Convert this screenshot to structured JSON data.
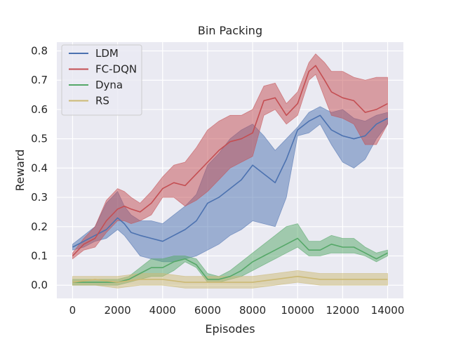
{
  "chart_data": {
    "type": "line",
    "title": "Bin Packing",
    "xlabel": "Episodes",
    "ylabel": "Reward",
    "xlim": [
      -700,
      14700
    ],
    "ylim": [
      -0.045,
      0.83
    ],
    "xticks": [
      0,
      2000,
      4000,
      6000,
      8000,
      10000,
      12000,
      14000
    ],
    "xtick_labels": [
      "0",
      "2000",
      "4000",
      "6000",
      "8000",
      "10000",
      "12000",
      "14000"
    ],
    "yticks": [
      0.0,
      0.1,
      0.2,
      0.3,
      0.4,
      0.5,
      0.6,
      0.7,
      0.8
    ],
    "ytick_labels": [
      "0.0",
      "0.1",
      "0.2",
      "0.3",
      "0.4",
      "0.5",
      "0.6",
      "0.7",
      "0.8"
    ],
    "grid": true,
    "legend_position": "top-left",
    "series": [
      {
        "name": "LDM",
        "color": "#4c72b0",
        "x": [
          0,
          500,
          1000,
          1500,
          2000,
          2300,
          2600,
          3000,
          3500,
          4000,
          4500,
          5000,
          5500,
          6000,
          6500,
          7000,
          7500,
          8000,
          8500,
          9000,
          9500,
          10000,
          10500,
          11000,
          11500,
          12000,
          12500,
          13000,
          13500,
          14000
        ],
        "mean": [
          0.13,
          0.15,
          0.17,
          0.19,
          0.23,
          0.21,
          0.18,
          0.17,
          0.16,
          0.15,
          0.17,
          0.19,
          0.22,
          0.28,
          0.3,
          0.33,
          0.36,
          0.41,
          0.38,
          0.35,
          0.43,
          0.53,
          0.56,
          0.58,
          0.53,
          0.51,
          0.5,
          0.51,
          0.55,
          0.57
        ],
        "lower": [
          0.12,
          0.13,
          0.15,
          0.16,
          0.19,
          0.17,
          0.14,
          0.1,
          0.09,
          0.08,
          0.08,
          0.09,
          0.1,
          0.12,
          0.14,
          0.17,
          0.19,
          0.22,
          0.21,
          0.2,
          0.3,
          0.51,
          0.52,
          0.55,
          0.48,
          0.42,
          0.4,
          0.43,
          0.5,
          0.55
        ],
        "upper": [
          0.14,
          0.17,
          0.2,
          0.28,
          0.32,
          0.27,
          0.24,
          0.22,
          0.22,
          0.21,
          0.24,
          0.27,
          0.31,
          0.41,
          0.45,
          0.5,
          0.53,
          0.55,
          0.51,
          0.46,
          0.5,
          0.54,
          0.59,
          0.61,
          0.59,
          0.6,
          0.57,
          0.56,
          0.58,
          0.59
        ]
      },
      {
        "name": "FC-DQN",
        "color": "#c44e52",
        "x": [
          0,
          500,
          1000,
          1500,
          2000,
          2300,
          2600,
          3000,
          3500,
          4000,
          4500,
          5000,
          5500,
          6000,
          6500,
          7000,
          7500,
          8000,
          8500,
          9000,
          9500,
          10000,
          10500,
          10800,
          11200,
          11500,
          12000,
          12500,
          13000,
          13500,
          14000
        ],
        "mean": [
          0.1,
          0.14,
          0.16,
          0.22,
          0.26,
          0.27,
          0.26,
          0.25,
          0.28,
          0.33,
          0.35,
          0.34,
          0.38,
          0.42,
          0.46,
          0.49,
          0.5,
          0.52,
          0.63,
          0.64,
          0.58,
          0.62,
          0.73,
          0.75,
          0.7,
          0.66,
          0.64,
          0.63,
          0.59,
          0.6,
          0.62
        ],
        "lower": [
          0.09,
          0.12,
          0.13,
          0.18,
          0.22,
          0.22,
          0.21,
          0.22,
          0.24,
          0.3,
          0.3,
          0.27,
          0.29,
          0.32,
          0.36,
          0.4,
          0.42,
          0.44,
          0.58,
          0.6,
          0.55,
          0.58,
          0.7,
          0.72,
          0.64,
          0.58,
          0.57,
          0.55,
          0.48,
          0.48,
          0.55
        ],
        "upper": [
          0.11,
          0.16,
          0.2,
          0.29,
          0.33,
          0.32,
          0.3,
          0.28,
          0.32,
          0.37,
          0.41,
          0.42,
          0.47,
          0.53,
          0.56,
          0.58,
          0.58,
          0.6,
          0.68,
          0.69,
          0.62,
          0.66,
          0.76,
          0.79,
          0.76,
          0.73,
          0.73,
          0.71,
          0.7,
          0.71,
          0.71
        ]
      },
      {
        "name": "Dyna",
        "color": "#55a868",
        "x": [
          0,
          500,
          1000,
          1500,
          2000,
          2500,
          3000,
          3500,
          4000,
          4500,
          5000,
          5500,
          6000,
          6500,
          7000,
          7500,
          8000,
          8500,
          9000,
          9500,
          10000,
          10500,
          11000,
          11500,
          12000,
          12500,
          13000,
          13500,
          14000
        ],
        "mean": [
          0.01,
          0.01,
          0.01,
          0.01,
          0.01,
          0.02,
          0.04,
          0.06,
          0.06,
          0.08,
          0.09,
          0.07,
          0.02,
          0.02,
          0.03,
          0.05,
          0.08,
          0.1,
          0.12,
          0.14,
          0.16,
          0.12,
          0.12,
          0.14,
          0.13,
          0.13,
          0.11,
          0.09,
          0.11
        ],
        "lower": [
          0.0,
          0.0,
          0.0,
          0.0,
          0.0,
          0.01,
          0.02,
          0.03,
          0.03,
          0.05,
          0.08,
          0.06,
          0.01,
          0.01,
          0.02,
          0.03,
          0.05,
          0.07,
          0.09,
          0.11,
          0.13,
          0.1,
          0.1,
          0.11,
          0.11,
          0.11,
          0.1,
          0.08,
          0.1
        ],
        "upper": [
          0.02,
          0.02,
          0.02,
          0.02,
          0.02,
          0.03,
          0.06,
          0.09,
          0.09,
          0.1,
          0.1,
          0.09,
          0.04,
          0.03,
          0.05,
          0.08,
          0.11,
          0.14,
          0.17,
          0.2,
          0.21,
          0.15,
          0.15,
          0.17,
          0.16,
          0.16,
          0.13,
          0.11,
          0.12
        ]
      },
      {
        "name": "RS",
        "color": "#ccb974",
        "x": [
          0,
          1000,
          2000,
          3000,
          4000,
          5000,
          6000,
          7000,
          8000,
          9000,
          10000,
          11000,
          12000,
          13000,
          14000
        ],
        "mean": [
          0.01,
          0.02,
          0.01,
          0.02,
          0.02,
          0.01,
          0.01,
          0.01,
          0.01,
          0.02,
          0.03,
          0.02,
          0.02,
          0.02,
          0.02
        ],
        "lower": [
          0.0,
          0.0,
          -0.01,
          0.0,
          0.0,
          -0.01,
          -0.01,
          -0.01,
          -0.01,
          0.0,
          0.01,
          0.0,
          0.0,
          0.0,
          0.0
        ],
        "upper": [
          0.03,
          0.03,
          0.03,
          0.04,
          0.04,
          0.03,
          0.03,
          0.03,
          0.03,
          0.04,
          0.05,
          0.04,
          0.04,
          0.04,
          0.04
        ]
      }
    ]
  }
}
